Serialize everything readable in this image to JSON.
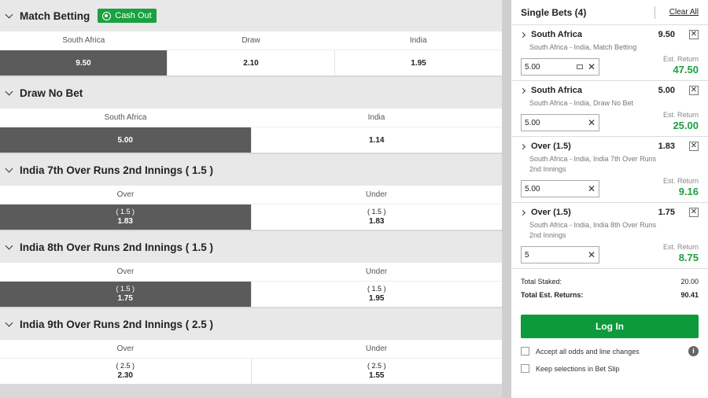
{
  "markets": [
    {
      "title": "Match Betting",
      "cash_out": "Cash Out",
      "columns": [
        "South Africa",
        "Draw",
        "India"
      ],
      "odds": [
        {
          "hcp": "",
          "price": "9.50",
          "selected": true
        },
        {
          "hcp": "",
          "price": "2.10",
          "selected": false
        },
        {
          "hcp": "",
          "price": "1.95",
          "selected": false
        }
      ]
    },
    {
      "title": "Draw No Bet",
      "cash_out": "",
      "columns": [
        "South Africa",
        "India"
      ],
      "odds": [
        {
          "hcp": "",
          "price": "5.00",
          "selected": true
        },
        {
          "hcp": "",
          "price": "1.14",
          "selected": false
        }
      ]
    },
    {
      "title": "India 7th Over Runs 2nd Innings ( 1.5 )",
      "cash_out": "",
      "columns": [
        "Over",
        "Under"
      ],
      "odds": [
        {
          "hcp": "( 1.5 )",
          "price": "1.83",
          "selected": true
        },
        {
          "hcp": "( 1.5 )",
          "price": "1.83",
          "selected": false
        }
      ]
    },
    {
      "title": "India 8th Over Runs 2nd Innings ( 1.5 )",
      "cash_out": "",
      "columns": [
        "Over",
        "Under"
      ],
      "odds": [
        {
          "hcp": "( 1.5 )",
          "price": "1.75",
          "selected": true
        },
        {
          "hcp": "( 1.5 )",
          "price": "1.95",
          "selected": false
        }
      ]
    },
    {
      "title": "India 9th Over Runs 2nd Innings ( 2.5 )",
      "cash_out": "",
      "columns": [
        "Over",
        "Under"
      ],
      "odds": [
        {
          "hcp": "( 2.5 )",
          "price": "2.30",
          "selected": false
        },
        {
          "hcp": "( 2.5 )",
          "price": "1.55",
          "selected": false
        }
      ]
    }
  ],
  "slip": {
    "title": "Single Bets (4)",
    "clear_all": "Clear All",
    "est_return_label": "Est. Return",
    "bets": [
      {
        "selection": "South Africa",
        "odds": "9.50",
        "description": "South Africa - India, Match Betting",
        "stake": "5.00",
        "est_return": "47.50",
        "stake_icon": true
      },
      {
        "selection": "South Africa",
        "odds": "5.00",
        "description": "South Africa - India, Draw No Bet",
        "stake": "5.00",
        "est_return": "25.00",
        "stake_icon": false
      },
      {
        "selection": "Over (1.5)",
        "odds": "1.83",
        "description": "South Africa - India, India 7th Over Runs 2nd Innings",
        "stake": "5.00",
        "est_return": "9.16",
        "stake_icon": false
      },
      {
        "selection": "Over (1.5)",
        "odds": "1.75",
        "description": "South Africa - India, India 8th Over Runs 2nd Innings",
        "stake": "5",
        "est_return": "8.75",
        "stake_icon": false
      }
    ],
    "total_staked_label": "Total Staked:",
    "total_staked": "20.00",
    "total_returns_label": "Total Est. Returns:",
    "total_returns": "90.41",
    "login_label": "Log In",
    "option_accept": "Accept all odds and line changes",
    "option_keep": "Keep selections in Bet Slip",
    "colors": {
      "accent": "#1aa140",
      "selected": "#5b5b5b"
    }
  }
}
